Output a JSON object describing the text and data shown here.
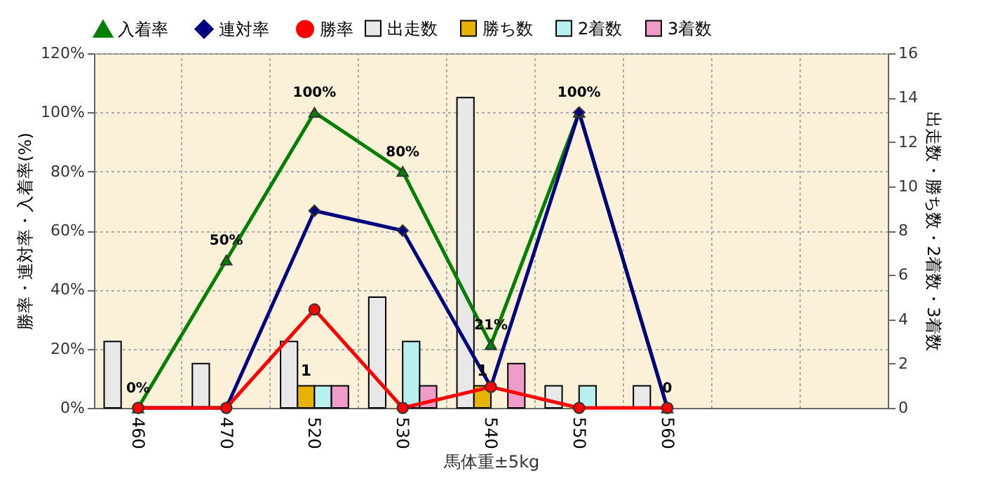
{
  "chart_data": {
    "type": "bar",
    "categories": [
      "460",
      "470",
      "520",
      "530",
      "540",
      "550",
      "560",
      null,
      null
    ],
    "xlabel": "馬体重±5kg",
    "ylabel": "勝率・連対率・入着率(%)",
    "y2label": "出走数・勝ち数・2着数・3着数",
    "ylim": [
      0,
      120
    ],
    "yticks": [
      {
        "value": 0,
        "label": "0%"
      },
      {
        "value": 20,
        "label": "20%"
      },
      {
        "value": 40,
        "label": "40%"
      },
      {
        "value": 60,
        "label": "60%"
      },
      {
        "value": 80,
        "label": "80%"
      },
      {
        "value": 100,
        "label": "100%"
      },
      {
        "value": 120,
        "label": "120%"
      }
    ],
    "y2lim": [
      0,
      16
    ],
    "y2ticks": [
      0,
      2,
      4,
      6,
      8,
      10,
      12,
      14,
      16
    ],
    "grid": true,
    "legend": "top",
    "series": [
      {
        "name": "出走数",
        "color": "#e8e8e8",
        "axis": "y2",
        "values": [
          3,
          2,
          3,
          5,
          14,
          1,
          1,
          null,
          null
        ]
      },
      {
        "name": "勝ち数",
        "color": "#e6b400",
        "axis": "y2",
        "values": [
          null,
          null,
          1,
          null,
          1,
          null,
          null,
          null,
          null
        ],
        "value_labels": [
          null,
          null,
          "1",
          null,
          "1",
          null,
          null,
          null,
          null
        ]
      },
      {
        "name": "2着数",
        "color": "#b8f0f0",
        "axis": "y2",
        "values": [
          null,
          null,
          1,
          3,
          null,
          1,
          null,
          null,
          null
        ]
      },
      {
        "name": "3着数",
        "color": "#f09cc8",
        "axis": "y2",
        "values": [
          null,
          null,
          1,
          1,
          2,
          null,
          null,
          null,
          null
        ]
      },
      {
        "name": "入着率",
        "type": "line",
        "color": "#008000",
        "marker": "triangle",
        "values": [
          0,
          50,
          100,
          80,
          21.4,
          100,
          0,
          null,
          null
        ],
        "value_labels": [
          "0%",
          "50%",
          "100%",
          "80%",
          "21%",
          "100%",
          "0",
          null,
          null
        ]
      },
      {
        "name": "連対率",
        "type": "line",
        "color": "#000080",
        "marker": "diamond",
        "values": [
          0,
          0,
          66.7,
          60,
          7.1,
          100,
          0,
          null,
          null
        ]
      },
      {
        "name": "勝率",
        "type": "line",
        "color": "#ff0000",
        "marker": "circle",
        "values": [
          0,
          0,
          33.3,
          0,
          7.1,
          0,
          0,
          null,
          null
        ]
      }
    ]
  }
}
